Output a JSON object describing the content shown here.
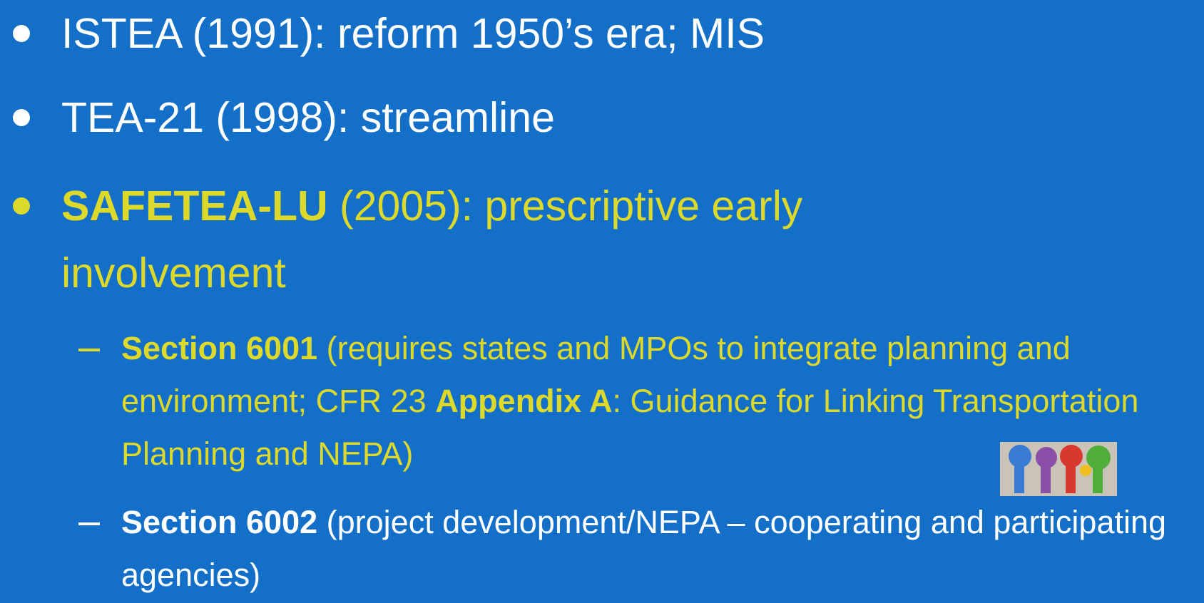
{
  "slide": {
    "background": "#136fc8",
    "items": [
      {
        "level": 1,
        "color": "#ffffff",
        "runs": [
          {
            "text": "ISTEA (1991):  reform 1950’s era; MIS",
            "bold": false
          }
        ]
      },
      {
        "level": 1,
        "color": "#ffffff",
        "runs": [
          {
            "text": "TEA-21 (1998):  streamline",
            "bold": false
          }
        ]
      },
      {
        "level": 1,
        "color": "#dcd92a",
        "runs": [
          {
            "text": "SAFETEA-LU",
            "bold": true
          },
          {
            "text": " (2005): prescriptive early involvement",
            "bold": false
          }
        ]
      },
      {
        "level": 2,
        "color": "#dcd92a",
        "runs": [
          {
            "text": "Section 6001",
            "bold": true
          },
          {
            "text": " (requires states and MPOs to integrate planning and environment; CFR 23 ",
            "bold": false
          },
          {
            "text": "Appendix A",
            "bold": true
          },
          {
            "text": ":  Guidance for Linking Transportation Planning and NEPA)",
            "bold": false
          }
        ]
      },
      {
        "level": 2,
        "color": "#ffffff",
        "runs": [
          {
            "text": "Section 6002",
            "bold": true
          },
          {
            "text": " (project development/NEPA – cooperating and participating agencies)",
            "bold": false
          }
        ]
      }
    ]
  }
}
